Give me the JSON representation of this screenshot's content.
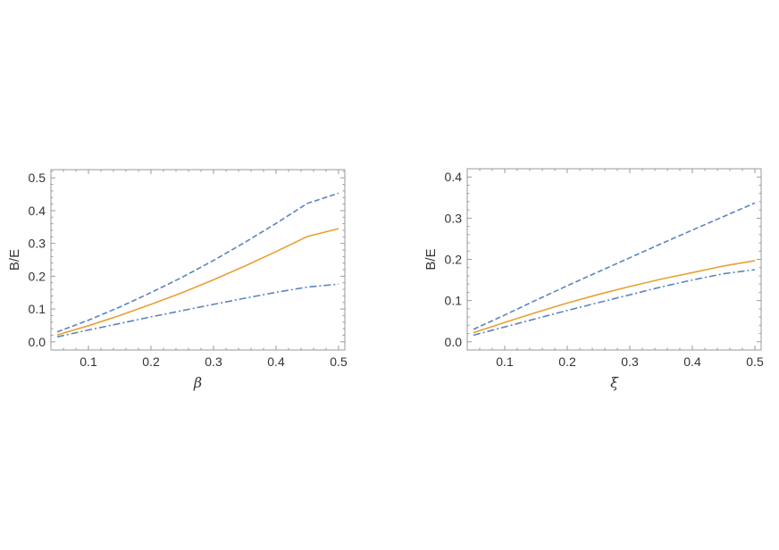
{
  "chart_data": [
    {
      "type": "line",
      "xlabel": "β",
      "ylabel": "B/E",
      "xlim": [
        0.04,
        0.51
      ],
      "ylim": [
        -0.025,
        0.525
      ],
      "xticks": [
        "0.1",
        "0.2",
        "0.3",
        "0.4",
        "0.5"
      ],
      "yticks": [
        "0.0",
        "0.1",
        "0.2",
        "0.3",
        "0.4",
        "0.5"
      ],
      "grid": false,
      "x": [
        0.05,
        0.1,
        0.15,
        0.2,
        0.25,
        0.3,
        0.35,
        0.4,
        0.45,
        0.5
      ],
      "series": [
        {
          "style": "dashed",
          "color": "#5b84bf",
          "values": [
            0.03,
            0.066,
            0.106,
            0.15,
            0.197,
            0.248,
            0.303,
            0.361,
            0.422,
            0.453
          ]
        },
        {
          "style": "solid",
          "color": "#e8a032",
          "values": [
            0.021,
            0.049,
            0.08,
            0.114,
            0.15,
            0.189,
            0.231,
            0.275,
            0.321,
            0.345
          ]
        },
        {
          "style": "dash-dot",
          "color": "#5b84bf",
          "values": [
            0.015,
            0.036,
            0.056,
            0.076,
            0.095,
            0.114,
            0.133,
            0.151,
            0.167,
            0.176
          ]
        }
      ]
    },
    {
      "type": "line",
      "xlabel": "ξ",
      "ylabel": "B/E",
      "xlim": [
        0.04,
        0.51
      ],
      "ylim": [
        -0.02,
        0.42
      ],
      "xticks": [
        "0.1",
        "0.2",
        "0.3",
        "0.4",
        "0.5"
      ],
      "yticks": [
        "0.0",
        "0.1",
        "0.2",
        "0.3",
        "0.4"
      ],
      "grid": false,
      "x": [
        0.05,
        0.1,
        0.15,
        0.2,
        0.25,
        0.3,
        0.35,
        0.4,
        0.45,
        0.5
      ],
      "series": [
        {
          "style": "dashed",
          "color": "#5b84bf",
          "values": [
            0.03,
            0.065,
            0.101,
            0.136,
            0.17,
            0.204,
            0.238,
            0.271,
            0.304,
            0.337
          ]
        },
        {
          "style": "solid",
          "color": "#e8a032",
          "values": [
            0.022,
            0.047,
            0.071,
            0.094,
            0.115,
            0.134,
            0.152,
            0.168,
            0.184,
            0.197
          ]
        },
        {
          "style": "dash-dot",
          "color": "#5b84bf",
          "values": [
            0.016,
            0.036,
            0.056,
            0.076,
            0.095,
            0.114,
            0.133,
            0.15,
            0.165,
            0.175
          ]
        }
      ]
    }
  ]
}
